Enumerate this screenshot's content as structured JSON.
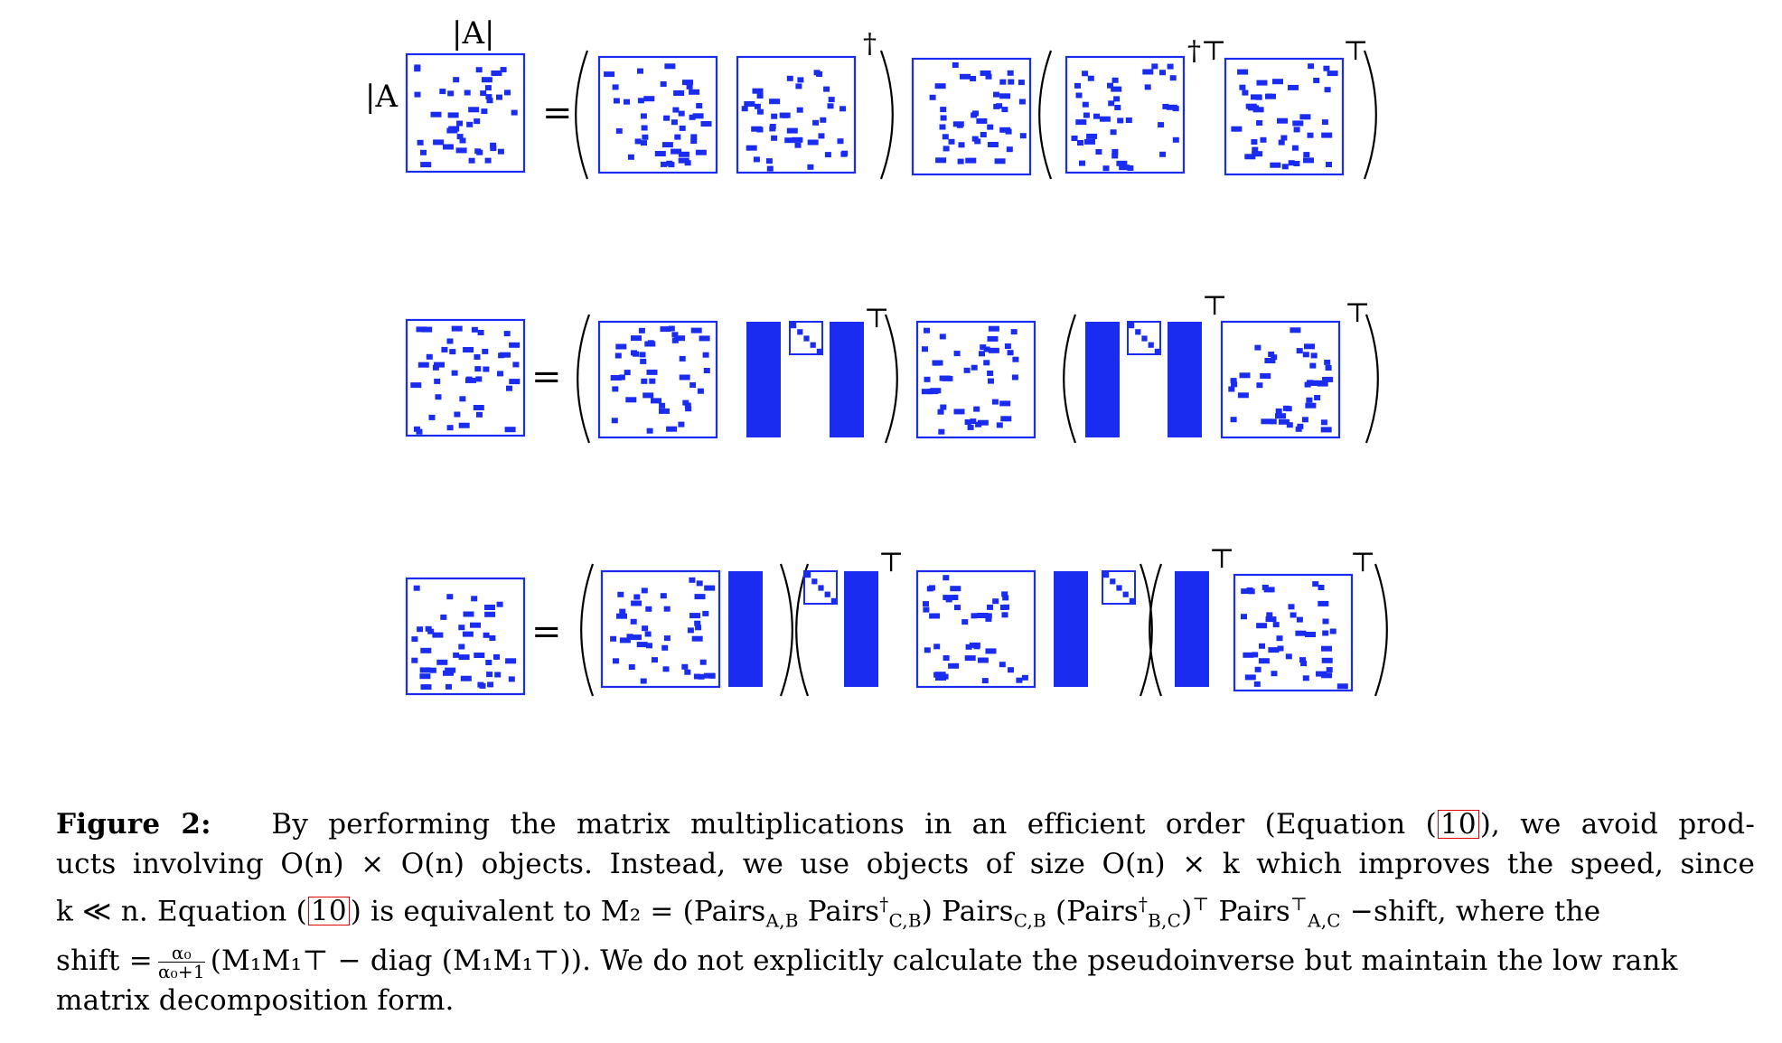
{
  "figure": {
    "top_labels": {
      "col": "|A|",
      "row": "|A"
    },
    "equals_sign": "=",
    "superscripts": {
      "dagger": "†",
      "dagger_transpose": "†⊤",
      "transpose": "⊤"
    },
    "colors": {
      "matrix": "#1a2cf0",
      "paren": "#000000"
    }
  },
  "caption": {
    "label": "Figure 2:",
    "line1_text": "By performing the matrix multiplications in an efficient order (Equation",
    "ref1": "10",
    "line1_tail": "), we avoid prod-",
    "line2": "ucts involving O(n) × O(n) objects. Instead, we use objects of size O(n) × k which improves the speed, since",
    "line3_a": "k ≪ n. Equation",
    "ref2": "10",
    "line3_b": "is equivalent to M₂ =",
    "line3_c": "(Pairs",
    "sub_ab": "A,B",
    "pairs_cb_dagger": "Pairs",
    "sup_dagger": "†",
    "sub_cb": "C,B",
    "line3_d": ") Pairs",
    "line3_e": "(Pairs",
    "sub_bc": "B,C",
    "line3_f": ")",
    "sup_t": "⊤",
    "line3_g": "Pairs",
    "sub_ac": "A,C",
    "line3_h": "−shift, where the",
    "line4_a": "shift =",
    "frac_num": "α₀",
    "frac_den": "α₀+1",
    "line4_b": "(M₁M₁⊤ − diag (M₁M₁⊤)). We do not explicitly calculate the pseudoinverse but maintain the low rank",
    "line5": "matrix decomposition form."
  }
}
